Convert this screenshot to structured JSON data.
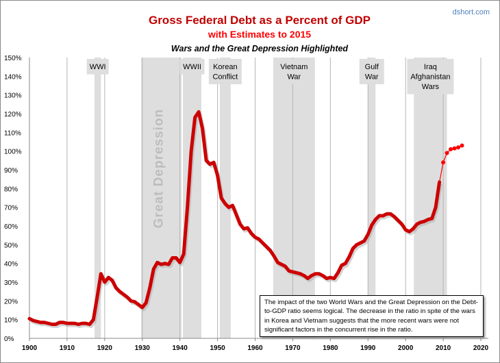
{
  "chart_data": {
    "type": "line",
    "title": "Gross Federal Debt as a Percent of GDP",
    "subtitle": "with Estimates to 2015",
    "subtitle2": "Wars and the Great Depression Highlighted",
    "source": "dshort.com",
    "xlabel": "",
    "ylabel": "",
    "xlim": [
      1900,
      2020
    ],
    "ylim": [
      0,
      150
    ],
    "x_ticks": [
      "1900",
      "1910",
      "1920",
      "1930",
      "1940",
      "1950",
      "1960",
      "1970",
      "1980",
      "1990",
      "2000",
      "2010",
      "2020"
    ],
    "y_ticks": [
      "0%",
      "10%",
      "20%",
      "30%",
      "40%",
      "50%",
      "60%",
      "70%",
      "80%",
      "90%",
      "100%",
      "110%",
      "120%",
      "130%",
      "140%",
      "150%"
    ],
    "grid": "vertical",
    "colors": {
      "actual": "#cc0000",
      "estimate": "#ff0000",
      "shade": "#dedede"
    },
    "series": [
      {
        "style": "thick-line",
        "x": [
          1900,
          1901,
          1902,
          1903,
          1904,
          1905,
          1906,
          1907,
          1908,
          1909,
          1910,
          1911,
          1912,
          1913,
          1914,
          1915,
          1916,
          1917,
          1918,
          1919,
          1920,
          1921,
          1922,
          1923,
          1924,
          1925,
          1926,
          1927,
          1928,
          1929,
          1930,
          1931,
          1932,
          1933,
          1934,
          1935,
          1936,
          1937,
          1938,
          1939,
          1940,
          1941,
          1942,
          1943,
          1944,
          1945,
          1946,
          1947,
          1948,
          1949,
          1950,
          1951,
          1952,
          1953,
          1954,
          1955,
          1956,
          1957,
          1958,
          1959,
          1960,
          1961,
          1962,
          1963,
          1964,
          1965,
          1966,
          1967,
          1968,
          1969,
          1970,
          1971,
          1972,
          1973,
          1974,
          1975,
          1976,
          1977,
          1978,
          1979,
          1980,
          1981,
          1982,
          1983,
          1984,
          1985,
          1986,
          1987,
          1988,
          1989,
          1990,
          1991,
          1992,
          1993,
          1994,
          1995,
          1996,
          1997,
          1998,
          1999,
          2000,
          2001,
          2002,
          2003,
          2004,
          2005,
          2006,
          2007,
          2008,
          2009
        ],
        "values": [
          10.5,
          9.5,
          9,
          8.5,
          8.5,
          8,
          7.5,
          7.5,
          8.5,
          8.5,
          8,
          8,
          8,
          7.5,
          8,
          8,
          7.5,
          10,
          22,
          34.5,
          30,
          32.5,
          31,
          27,
          25,
          23.5,
          22,
          20,
          19.5,
          18,
          16.5,
          19,
          27,
          37,
          40.5,
          39.5,
          40,
          39.5,
          43,
          43,
          40.5,
          45,
          70,
          100,
          118,
          121,
          112,
          95,
          93,
          94,
          87,
          75,
          72,
          70,
          71,
          66,
          61,
          58.5,
          59,
          56,
          54,
          53,
          51,
          49,
          47,
          44,
          40.5,
          39.5,
          38.5,
          36,
          35.5,
          35,
          34.5,
          33.5,
          32,
          33.5,
          34.5,
          34.5,
          33.5,
          32,
          32.5,
          32,
          35,
          39,
          40,
          43.5,
          48,
          50,
          51,
          52,
          55.5,
          60.5,
          63.5,
          65.5,
          65.5,
          66.5,
          66.5,
          65,
          63,
          61,
          58,
          57,
          58.5,
          61,
          62,
          62.5,
          63.5,
          64,
          70,
          83.5
        ]
      },
      {
        "style": "thin-line-markers",
        "x": [
          2009,
          2010,
          2011,
          2012,
          2013,
          2014,
          2015
        ],
        "values": [
          83.5,
          94,
          99,
          101,
          101.5,
          102,
          103
        ]
      }
    ],
    "highlights": [
      {
        "label": "WWI",
        "start": 1917.3,
        "end": 1919
      },
      {
        "label": "Great Depression",
        "start": 1929.7,
        "end": 1940.4
      },
      {
        "label": "WWII",
        "start": 1940.8,
        "end": 1945.7
      },
      {
        "label": "Korean Conflict",
        "start": 1950.6,
        "end": 1953.5
      },
      {
        "label": "Vietnam War",
        "start": 1964.8,
        "end": 1975.9
      },
      {
        "label": "Gulf War",
        "start": 1990,
        "end": 1992
      },
      {
        "label": "Iraq Afghanistan Wars",
        "start": 2002.2,
        "end": 2011
      }
    ],
    "annotation": "The impact of the two World Wars and the Great Depression on the Debt-to-GDP ratio seems logical. The decrease in the ratio in spite of the wars in Korea and Vietnam suggests that the more recent wars were not significant factors in the concurrent rise in the ratio."
  }
}
